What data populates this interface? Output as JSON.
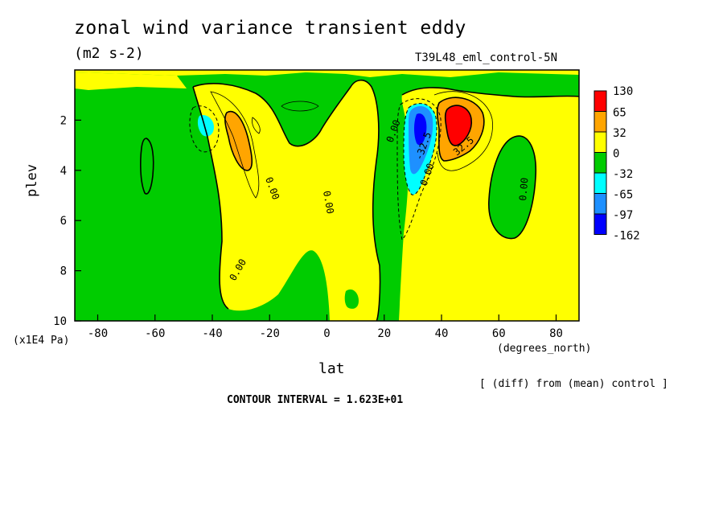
{
  "chart_data": {
    "type": "contour",
    "title": "zonal wind variance transient eddy",
    "units": "(m2 s-2)",
    "run_label": "T39L48_eml_control-5N",
    "xlabel": "lat",
    "xunits": "(degrees_north)",
    "ylabel": "plev",
    "yunits": "(x1E4 Pa)",
    "xlim": [
      -88,
      88
    ],
    "ylim": [
      10,
      0
    ],
    "x_ticks": [
      -80,
      -60,
      -40,
      -20,
      0,
      20,
      40,
      60,
      80
    ],
    "y_ticks": [
      2,
      4,
      6,
      8,
      10
    ],
    "colorbar": {
      "levels": [
        "130",
        "65",
        "32",
        "0",
        "-32",
        "-65",
        "-97",
        "-162"
      ],
      "colors": [
        "#ff0000",
        "#ffa500",
        "#ffff00",
        "#00cc00",
        "#00ffff",
        "#1e90ff",
        "#0000ff"
      ]
    },
    "contour_labels": [
      "0.00",
      "0.00",
      "0.00",
      "0.00",
      "0.00",
      "32.5",
      "-32.5",
      "0.00",
      "0.00"
    ],
    "features": [
      {
        "name": "positive core NH",
        "lat": 45,
        "plev": 2.4,
        "max": 130
      },
      {
        "name": "negative core NH",
        "lat": 32,
        "plev": 2.6,
        "min": -162
      },
      {
        "name": "positive core SH",
        "lat": -31,
        "plev": 2.8,
        "value": 32
      },
      {
        "name": "negative core SH",
        "lat": -42,
        "plev": 2.3,
        "value": -32
      }
    ],
    "annotation": "[ (diff) from (mean) control ]",
    "contour_interval": "CONTOUR INTERVAL = 1.623E+01"
  }
}
